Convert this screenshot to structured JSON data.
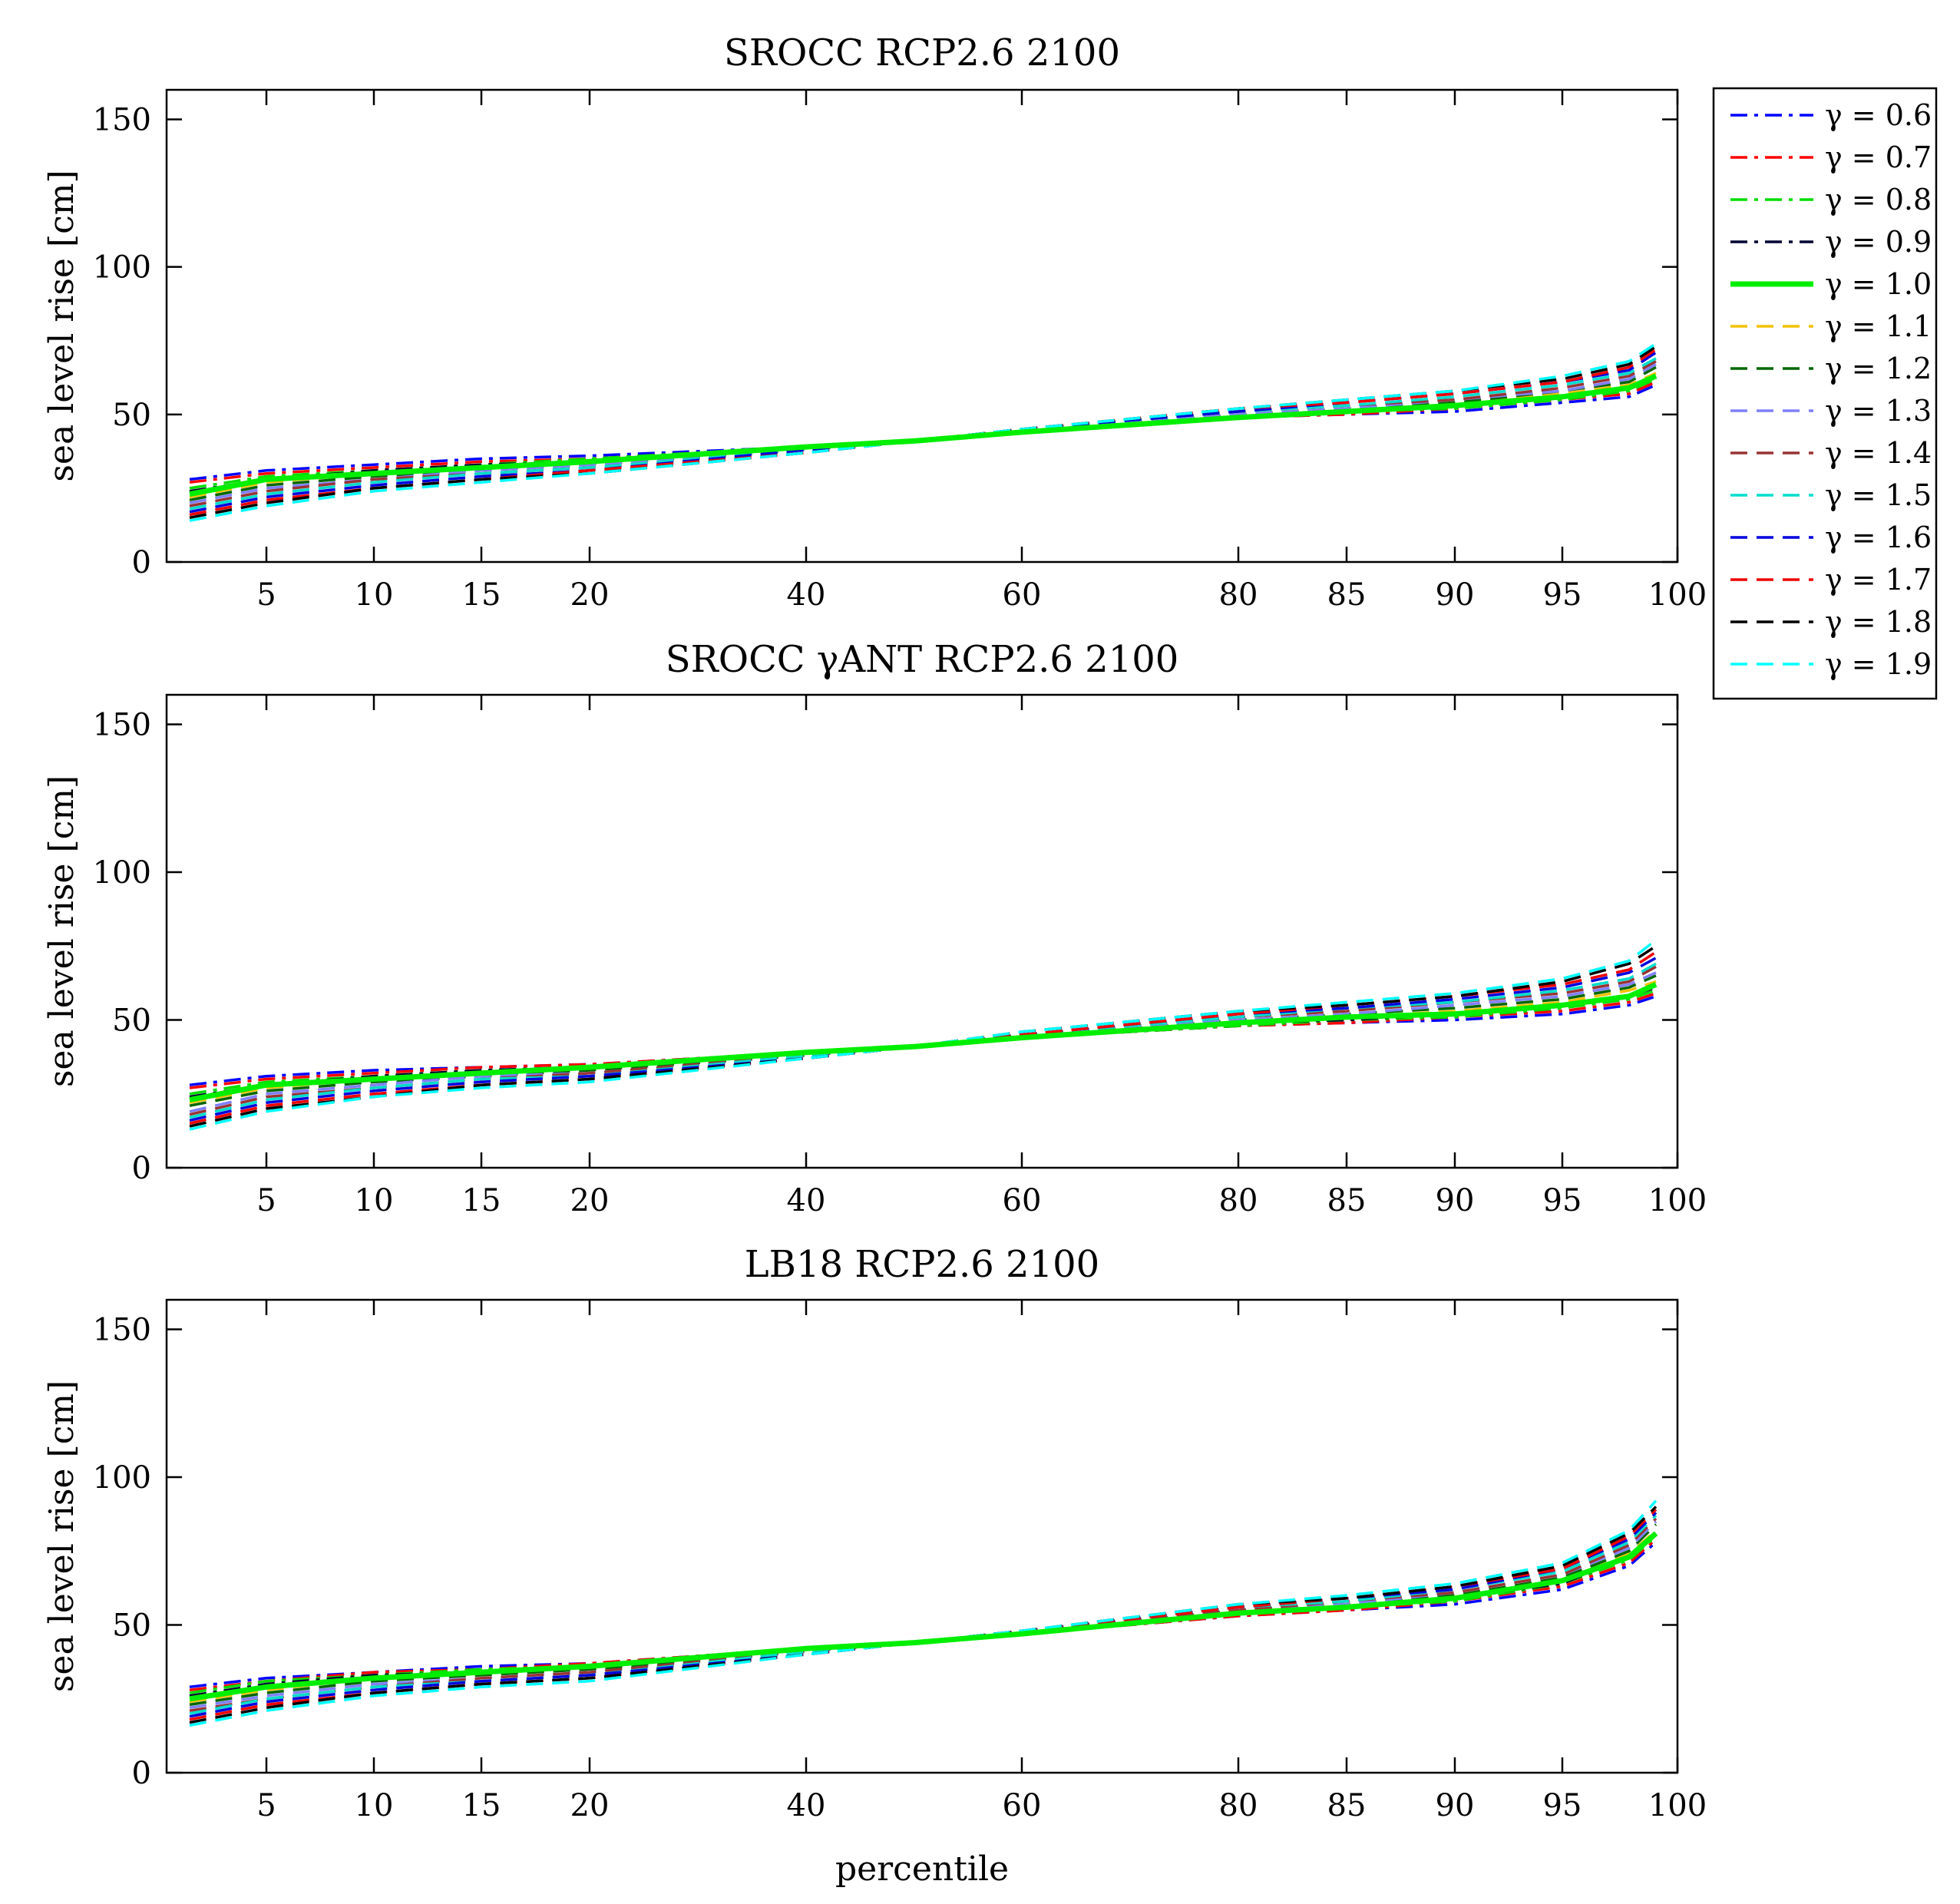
{
  "chart_data": [
    {
      "type": "line",
      "title": "SROCC RCP2.6 2100",
      "xlabel": "",
      "ylabel": "sea level rise [cm]",
      "x_tick_labels": [
        "5",
        "10",
        "15",
        "20",
        "40",
        "60",
        "80",
        "85",
        "90",
        "95",
        "100"
      ],
      "y_ticks": [
        0,
        50,
        100,
        150
      ],
      "ylim": [
        0,
        160
      ],
      "x": [
        1,
        5,
        10,
        15,
        20,
        40,
        50,
        60,
        80,
        85,
        90,
        95,
        98,
        99
      ],
      "series": [
        {
          "name": "γ = 0.6",
          "values": [
            28,
            31,
            33,
            35,
            36,
            39,
            41,
            44,
            49,
            50,
            51,
            54,
            56,
            60
          ]
        },
        {
          "name": "γ = 0.7",
          "values": [
            27,
            30,
            32,
            34,
            35,
            39,
            41,
            44,
            49,
            50,
            52,
            55,
            57,
            61
          ]
        },
        {
          "name": "γ = 0.8",
          "values": [
            25,
            29,
            31,
            33,
            35,
            39,
            41,
            44,
            49,
            51,
            52,
            55,
            58,
            62
          ]
        },
        {
          "name": "γ = 0.9",
          "values": [
            24,
            28,
            31,
            33,
            34,
            39,
            41,
            44,
            49,
            51,
            53,
            56,
            59,
            63
          ]
        },
        {
          "name": "γ = 1.0",
          "values": [
            23,
            28,
            30,
            32,
            34,
            39,
            41,
            44,
            49,
            51,
            53,
            56,
            59,
            63
          ]
        },
        {
          "name": "γ = 1.1",
          "values": [
            22,
            27,
            30,
            32,
            33,
            39,
            41,
            44,
            50,
            52,
            54,
            57,
            60,
            64
          ]
        },
        {
          "name": "γ = 1.2",
          "values": [
            21,
            26,
            29,
            31,
            33,
            38,
            41,
            44,
            50,
            52,
            54,
            58,
            61,
            66
          ]
        },
        {
          "name": "γ = 1.3",
          "values": [
            20,
            25,
            28,
            31,
            33,
            38,
            41,
            44,
            50,
            52,
            55,
            58,
            62,
            67
          ]
        },
        {
          "name": "γ = 1.4",
          "values": [
            19,
            24,
            28,
            30,
            32,
            38,
            41,
            45,
            51,
            53,
            55,
            59,
            63,
            68
          ]
        },
        {
          "name": "γ = 1.5",
          "values": [
            18,
            23,
            27,
            30,
            32,
            38,
            41,
            45,
            51,
            53,
            56,
            60,
            64,
            69
          ]
        },
        {
          "name": "γ = 1.6",
          "values": [
            17,
            22,
            26,
            29,
            31,
            38,
            41,
            45,
            51,
            54,
            57,
            61,
            65,
            71
          ]
        },
        {
          "name": "γ = 1.7",
          "values": [
            16,
            21,
            25,
            28,
            31,
            37,
            41,
            45,
            52,
            54,
            57,
            61,
            66,
            72
          ]
        },
        {
          "name": "γ = 1.8",
          "values": [
            15,
            20,
            25,
            28,
            30,
            37,
            41,
            45,
            52,
            55,
            58,
            62,
            67,
            73
          ]
        },
        {
          "name": "γ = 1.9",
          "values": [
            14,
            19,
            24,
            27,
            30,
            37,
            41,
            45,
            52,
            55,
            58,
            63,
            68,
            74
          ]
        }
      ]
    },
    {
      "type": "line",
      "title": "SROCC γANT RCP2.6 2100",
      "xlabel": "",
      "ylabel": "sea level rise [cm]",
      "x_tick_labels": [
        "5",
        "10",
        "15",
        "20",
        "40",
        "60",
        "80",
        "85",
        "90",
        "95",
        "100"
      ],
      "y_ticks": [
        0,
        50,
        100,
        150
      ],
      "ylim": [
        0,
        160
      ],
      "x": [
        1,
        5,
        10,
        15,
        20,
        40,
        50,
        60,
        80,
        85,
        90,
        95,
        98,
        99
      ],
      "series": [
        {
          "name": "γ = 0.6",
          "values": [
            28,
            31,
            33,
            34,
            35,
            39,
            41,
            44,
            48,
            49,
            50,
            52,
            55,
            58
          ]
        },
        {
          "name": "γ = 0.7",
          "values": [
            27,
            30,
            32,
            34,
            35,
            39,
            41,
            44,
            48,
            49,
            51,
            53,
            56,
            59
          ]
        },
        {
          "name": "γ = 0.8",
          "values": [
            25,
            29,
            31,
            33,
            34,
            39,
            41,
            44,
            48,
            50,
            51,
            54,
            57,
            60
          ]
        },
        {
          "name": "γ = 0.9",
          "values": [
            24,
            28,
            31,
            33,
            34,
            39,
            41,
            44,
            49,
            50,
            52,
            55,
            58,
            61
          ]
        },
        {
          "name": "γ = 1.0",
          "values": [
            23,
            28,
            30,
            32,
            34,
            39,
            41,
            44,
            49,
            51,
            52,
            55,
            58,
            62
          ]
        },
        {
          "name": "γ = 1.1",
          "values": [
            22,
            27,
            30,
            32,
            33,
            39,
            41,
            44,
            49,
            51,
            53,
            56,
            60,
            63
          ]
        },
        {
          "name": "γ = 1.2",
          "values": [
            21,
            26,
            29,
            31,
            33,
            38,
            41,
            44,
            50,
            52,
            54,
            57,
            61,
            65
          ]
        },
        {
          "name": "γ = 1.3",
          "values": [
            19,
            25,
            28,
            31,
            32,
            38,
            41,
            45,
            50,
            52,
            55,
            58,
            62,
            66
          ]
        },
        {
          "name": "γ = 1.4",
          "values": [
            18,
            24,
            27,
            30,
            32,
            38,
            41,
            45,
            51,
            53,
            56,
            59,
            63,
            68
          ]
        },
        {
          "name": "γ = 1.5",
          "values": [
            17,
            23,
            27,
            30,
            31,
            38,
            41,
            45,
            51,
            54,
            56,
            60,
            64,
            69
          ]
        },
        {
          "name": "γ = 1.6",
          "values": [
            16,
            22,
            26,
            29,
            31,
            37,
            41,
            45,
            52,
            54,
            57,
            61,
            66,
            71
          ]
        },
        {
          "name": "γ = 1.7",
          "values": [
            15,
            21,
            25,
            28,
            30,
            37,
            41,
            45,
            52,
            55,
            58,
            62,
            67,
            73
          ]
        },
        {
          "name": "γ = 1.8",
          "values": [
            14,
            20,
            24,
            28,
            30,
            37,
            41,
            46,
            53,
            55,
            58,
            63,
            69,
            75
          ]
        },
        {
          "name": "γ = 1.9",
          "values": [
            13,
            19,
            24,
            27,
            29,
            37,
            41,
            46,
            53,
            56,
            59,
            64,
            70,
            77
          ]
        }
      ]
    },
    {
      "type": "line",
      "title": "LB18 RCP2.6 2100",
      "xlabel": "percentile",
      "ylabel": "sea level rise [cm]",
      "x_tick_labels": [
        "5",
        "10",
        "15",
        "20",
        "40",
        "60",
        "80",
        "85",
        "90",
        "95",
        "100"
      ],
      "y_ticks": [
        0,
        50,
        100,
        150
      ],
      "ylim": [
        0,
        160
      ],
      "x": [
        1,
        5,
        10,
        15,
        20,
        40,
        50,
        60,
        80,
        85,
        90,
        95,
        98,
        99
      ],
      "series": [
        {
          "name": "γ = 0.6",
          "values": [
            29,
            32,
            34,
            36,
            37,
            42,
            44,
            47,
            53,
            55,
            57,
            62,
            70,
            78
          ]
        },
        {
          "name": "γ = 0.7",
          "values": [
            28,
            31,
            34,
            35,
            37,
            42,
            44,
            47,
            53,
            55,
            58,
            63,
            71,
            79
          ]
        },
        {
          "name": "γ = 0.8",
          "values": [
            27,
            31,
            33,
            35,
            36,
            42,
            44,
            47,
            54,
            56,
            58,
            64,
            72,
            80
          ]
        },
        {
          "name": "γ = 0.9",
          "values": [
            26,
            30,
            33,
            34,
            36,
            42,
            44,
            47,
            54,
            56,
            59,
            64,
            73,
            81
          ]
        },
        {
          "name": "γ = 1.0",
          "values": [
            25,
            29,
            32,
            34,
            36,
            42,
            44,
            47,
            54,
            56,
            59,
            65,
            73,
            81
          ]
        },
        {
          "name": "γ = 1.1",
          "values": [
            24,
            28,
            32,
            34,
            35,
            41,
            44,
            47,
            54,
            57,
            60,
            65,
            74,
            82
          ]
        },
        {
          "name": "γ = 1.2",
          "values": [
            23,
            27,
            31,
            33,
            35,
            41,
            44,
            47,
            55,
            57,
            60,
            66,
            75,
            84
          ]
        },
        {
          "name": "γ = 1.3",
          "values": [
            22,
            26,
            30,
            32,
            34,
            41,
            44,
            47,
            55,
            57,
            61,
            67,
            76,
            85
          ]
        },
        {
          "name": "γ = 1.4",
          "values": [
            21,
            25,
            29,
            32,
            34,
            41,
            44,
            48,
            55,
            58,
            61,
            67,
            77,
            86
          ]
        },
        {
          "name": "γ = 1.5",
          "values": [
            20,
            25,
            29,
            31,
            33,
            41,
            44,
            48,
            56,
            58,
            62,
            68,
            78,
            87
          ]
        },
        {
          "name": "γ = 1.6",
          "values": [
            19,
            24,
            28,
            31,
            33,
            40,
            44,
            48,
            56,
            59,
            62,
            69,
            79,
            88
          ]
        },
        {
          "name": "γ = 1.7",
          "values": [
            18,
            23,
            27,
            30,
            32,
            40,
            44,
            48,
            56,
            59,
            63,
            69,
            80,
            89
          ]
        },
        {
          "name": "γ = 1.8",
          "values": [
            17,
            22,
            27,
            30,
            32,
            40,
            44,
            48,
            57,
            59,
            63,
            70,
            81,
            90
          ]
        },
        {
          "name": "γ = 1.9",
          "values": [
            16,
            21,
            26,
            29,
            31,
            40,
            44,
            48,
            57,
            60,
            64,
            71,
            82,
            92
          ]
        }
      ]
    }
  ],
  "legend": {
    "placement": "top-right",
    "entries": [
      {
        "label": "γ = 0.6",
        "color": "#0000ff",
        "dash": "dashdot"
      },
      {
        "label": "γ = 0.7",
        "color": "#ff0000",
        "dash": "dashdot"
      },
      {
        "label": "γ = 0.8",
        "color": "#00dd00",
        "dash": "dashdot"
      },
      {
        "label": "γ = 0.9",
        "color": "#000033",
        "dash": "dashdot"
      },
      {
        "label": "γ = 1.0",
        "color": "#00ee00",
        "dash": "solid"
      },
      {
        "label": "γ = 1.1",
        "color": "#f2c200",
        "dash": "dash"
      },
      {
        "label": "γ = 1.2",
        "color": "#006600",
        "dash": "dash"
      },
      {
        "label": "γ = 1.3",
        "color": "#8080ff",
        "dash": "dash"
      },
      {
        "label": "γ = 1.4",
        "color": "#993333",
        "dash": "dash"
      },
      {
        "label": "γ = 1.5",
        "color": "#00ddcc",
        "dash": "dash"
      },
      {
        "label": "γ = 1.6",
        "color": "#0000dd",
        "dash": "dash"
      },
      {
        "label": "γ = 1.7",
        "color": "#ee0000",
        "dash": "dash"
      },
      {
        "label": "γ = 1.8",
        "color": "#000000",
        "dash": "dash"
      },
      {
        "label": "γ = 1.9",
        "color": "#00ffff",
        "dash": "dash"
      }
    ]
  }
}
